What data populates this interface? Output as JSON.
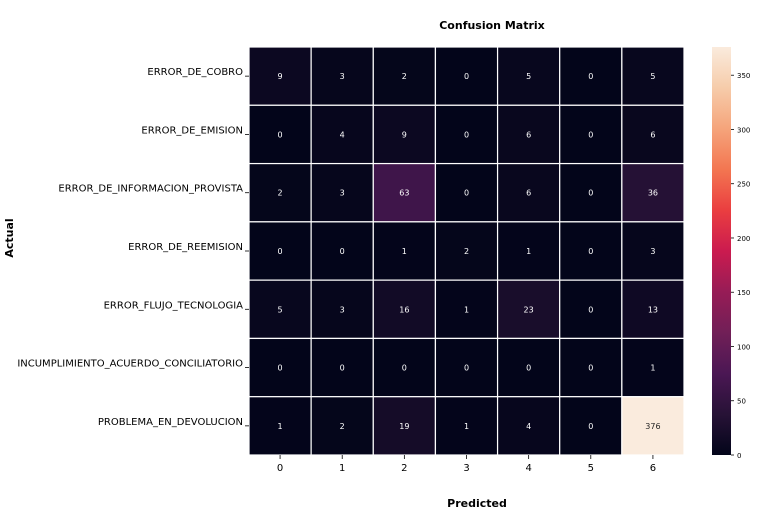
{
  "chart_data": {
    "type": "heatmap",
    "title": "Confusion Matrix",
    "xlabel": "Predicted",
    "ylabel": "Actual",
    "x_categories": [
      "0",
      "1",
      "2",
      "3",
      "4",
      "5",
      "6"
    ],
    "y_categories": [
      "ERROR_DE_COBRO",
      "ERROR_DE_EMISION",
      "ERROR_DE_INFORMACION_PROVISTA",
      "ERROR_DE_REEMISION",
      "ERROR_FLUJO_TECNOLOGIA",
      "INCUMPLIMIENTO_ACUERDO_CONCILIATORIO",
      "PROBLEMA_EN_DEVOLUCION"
    ],
    "values": [
      [
        9,
        3,
        2,
        0,
        5,
        0,
        5
      ],
      [
        0,
        4,
        9,
        0,
        6,
        0,
        6
      ],
      [
        2,
        3,
        63,
        0,
        6,
        0,
        36
      ],
      [
        0,
        0,
        1,
        2,
        1,
        0,
        3
      ],
      [
        5,
        3,
        16,
        1,
        23,
        0,
        13
      ],
      [
        0,
        0,
        0,
        0,
        0,
        0,
        1
      ],
      [
        1,
        2,
        19,
        1,
        4,
        0,
        376
      ]
    ],
    "colorbar": {
      "vmin": 0,
      "vmax": 376,
      "ticks": [
        0,
        50,
        100,
        150,
        200,
        250,
        300,
        350
      ],
      "colormap": "rocket"
    },
    "grid": false,
    "cell_separator_color": "#ffffff"
  }
}
